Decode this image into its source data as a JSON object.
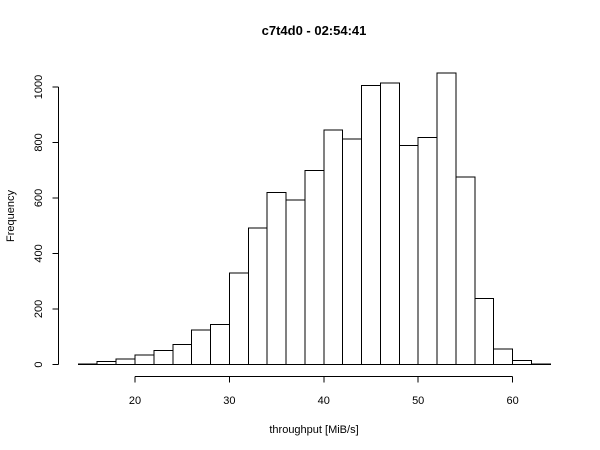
{
  "chart_data": {
    "type": "bar",
    "title": "c7t4d0 - 02:54:41",
    "xlabel": "throughput [MiB/s]",
    "ylabel": "Frequency",
    "bin_width": 2,
    "bins": [
      {
        "start": 14,
        "end": 16,
        "count": 2
      },
      {
        "start": 16,
        "end": 18,
        "count": 10
      },
      {
        "start": 18,
        "end": 20,
        "count": 20
      },
      {
        "start": 20,
        "end": 22,
        "count": 35
      },
      {
        "start": 22,
        "end": 24,
        "count": 50
      },
      {
        "start": 24,
        "end": 26,
        "count": 72
      },
      {
        "start": 26,
        "end": 28,
        "count": 125
      },
      {
        "start": 28,
        "end": 30,
        "count": 145
      },
      {
        "start": 30,
        "end": 32,
        "count": 330
      },
      {
        "start": 32,
        "end": 34,
        "count": 492
      },
      {
        "start": 34,
        "end": 36,
        "count": 620
      },
      {
        "start": 36,
        "end": 38,
        "count": 592
      },
      {
        "start": 38,
        "end": 40,
        "count": 700
      },
      {
        "start": 40,
        "end": 42,
        "count": 845
      },
      {
        "start": 42,
        "end": 44,
        "count": 812
      },
      {
        "start": 44,
        "end": 46,
        "count": 1005
      },
      {
        "start": 46,
        "end": 48,
        "count": 1015
      },
      {
        "start": 48,
        "end": 50,
        "count": 790
      },
      {
        "start": 50,
        "end": 52,
        "count": 818
      },
      {
        "start": 52,
        "end": 54,
        "count": 1050
      },
      {
        "start": 54,
        "end": 56,
        "count": 675
      },
      {
        "start": 56,
        "end": 58,
        "count": 238
      },
      {
        "start": 58,
        "end": 60,
        "count": 55
      },
      {
        "start": 60,
        "end": 62,
        "count": 15
      },
      {
        "start": 62,
        "end": 64,
        "count": 2
      }
    ],
    "x_ticks": [
      20,
      30,
      40,
      50,
      60
    ],
    "y_ticks": [
      0,
      200,
      400,
      600,
      800,
      1000
    ],
    "xlim": [
      14,
      64
    ],
    "ylim": [
      0,
      1050
    ],
    "grid": false,
    "bar_fill": "#ffffff",
    "bar_stroke": "#000000"
  }
}
